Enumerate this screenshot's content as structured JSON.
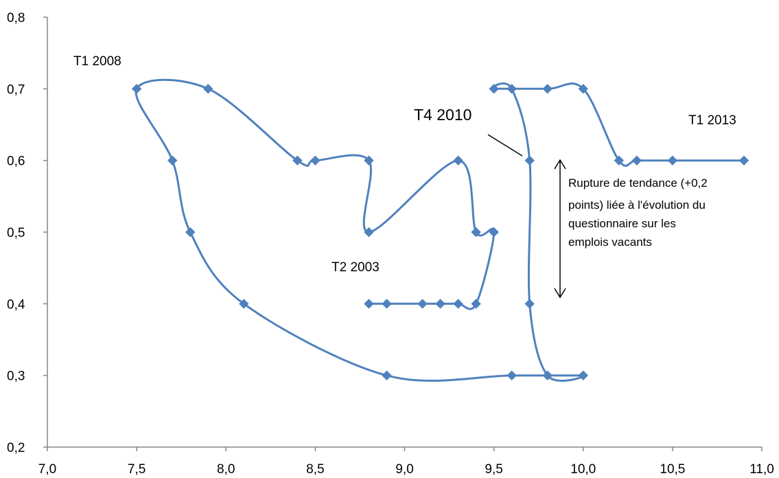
{
  "colors": {
    "series": "#4f81bd",
    "axis": "#868686",
    "text": "#000000"
  },
  "chart_data": {
    "type": "scatter",
    "title": "",
    "xlabel": "",
    "ylabel": "",
    "xlim": [
      7.0,
      11.0
    ],
    "ylim": [
      0.2,
      0.8
    ],
    "x_ticks": [
      "7,0",
      "7,5",
      "8,0",
      "8,5",
      "9,0",
      "9,5",
      "10,0",
      "10,5",
      "11,0"
    ],
    "y_ticks": [
      "0,2",
      "0,3",
      "0,4",
      "0,5",
      "0,6",
      "0,7",
      "0,8"
    ],
    "grid": false,
    "legend": "none",
    "smooth_line": true,
    "marker": "diamond",
    "series": [
      {
        "points": [
          [
            8.8,
            0.4
          ],
          [
            8.9,
            0.4
          ],
          [
            9.1,
            0.4
          ],
          [
            9.2,
            0.4
          ],
          [
            9.3,
            0.4
          ],
          [
            9.4,
            0.4
          ],
          [
            9.5,
            0.5
          ],
          [
            9.4,
            0.5
          ],
          [
            9.3,
            0.6
          ],
          [
            8.8,
            0.5
          ],
          [
            8.8,
            0.6
          ],
          [
            8.5,
            0.6
          ],
          [
            8.4,
            0.6
          ],
          [
            7.9,
            0.7
          ],
          [
            7.5,
            0.7
          ],
          [
            7.7,
            0.6
          ],
          [
            7.8,
            0.5
          ],
          [
            8.1,
            0.4
          ],
          [
            8.9,
            0.3
          ],
          [
            9.6,
            0.3
          ],
          [
            10.0,
            0.3
          ],
          [
            9.8,
            0.3
          ],
          [
            9.7,
            0.4
          ],
          [
            9.7,
            0.6
          ],
          [
            9.6,
            0.7
          ],
          [
            9.5,
            0.7
          ],
          [
            9.8,
            0.7
          ],
          [
            10.0,
            0.7
          ],
          [
            10.2,
            0.6
          ],
          [
            10.3,
            0.6
          ],
          [
            10.5,
            0.6
          ],
          [
            10.9,
            0.6
          ]
        ]
      }
    ],
    "annotations": {
      "t1_2008": "T1 2008",
      "t2_2003": "T2 2003",
      "t4_2010": "T4 2010",
      "t1_2013": "T1 2013",
      "rupture_lines": [
        "Rupture de tendance (+0,2",
        "points) liée à l'évolution du",
        "questionnaire sur les",
        "emplois vacants"
      ]
    }
  }
}
